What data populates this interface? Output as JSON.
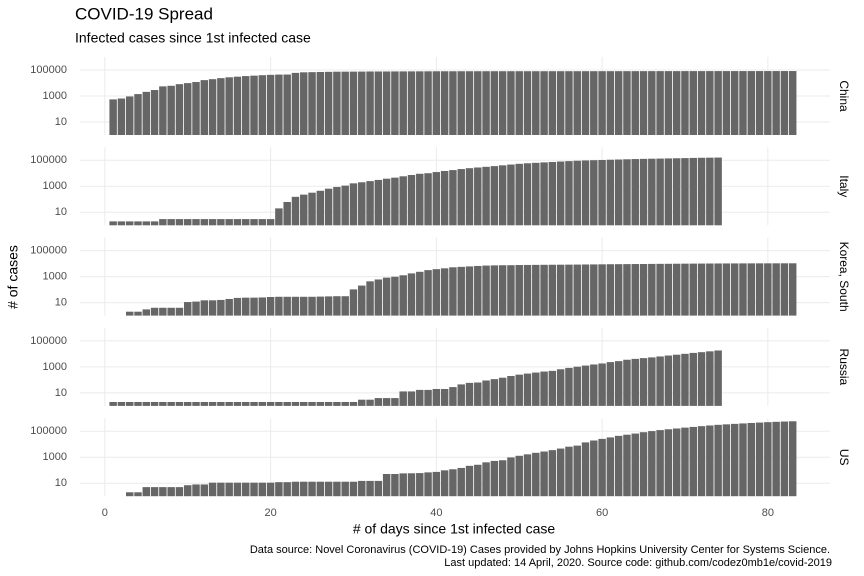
{
  "chart_data": {
    "type": "bar",
    "title": "COVID-19 Spread",
    "subtitle": "Infected cases since 1st infected case",
    "x_label": "# of days since 1st infected case",
    "y_label": "# of cases",
    "caption": [
      "Data source: Novel Coronavirus (COVID-19) Cases provided by Johns Hopkins University Center for Systems Science.",
      "Last updated: 14 April, 2020. Source code: github.com/codez0mb1e/covid-2019"
    ],
    "log_y": true,
    "grid": true,
    "xlim": [
      -3,
      87.5
    ],
    "xticks": [
      0,
      20,
      40,
      60,
      80
    ],
    "ylim": [
      1,
      1000000
    ],
    "yticks": [
      10,
      1000,
      100000
    ],
    "x": [
      1,
      2,
      3,
      4,
      5,
      6,
      7,
      8,
      9,
      10,
      11,
      12,
      13,
      14,
      15,
      16,
      17,
      18,
      19,
      20,
      21,
      22,
      23,
      24,
      25,
      26,
      27,
      28,
      29,
      30,
      31,
      32,
      33,
      34,
      35,
      36,
      37,
      38,
      39,
      40,
      41,
      42,
      43,
      44,
      45,
      46,
      47,
      48,
      49,
      50,
      51,
      52,
      53,
      54,
      55,
      56,
      57,
      58,
      59,
      60,
      61,
      62,
      63,
      64,
      65,
      66,
      67,
      68,
      69,
      70,
      71,
      72,
      73,
      74,
      75,
      76,
      77,
      78,
      79,
      80,
      81,
      82,
      83
    ],
    "series": [
      {
        "name": "China",
        "color": "#666666",
        "values": [
          548,
          643,
          920,
          1406,
          2075,
          2877,
          5509,
          6087,
          8141,
          9802,
          11891,
          16630,
          19716,
          23707,
          27440,
          30587,
          34110,
          36814,
          39829,
          42354,
          44386,
          44759,
          59895,
          66358,
          68413,
          70513,
          72434,
          74211,
          74619,
          75077,
          75550,
          77001,
          77022,
          77241,
          77754,
          78166,
          78600,
          78928,
          79356,
          79932,
          80136,
          80261,
          80386,
          80537,
          80690,
          80770,
          80823,
          80860,
          80887,
          80921,
          80932,
          80945,
          80977,
          81003,
          81033,
          81058,
          81102,
          81156,
          81250,
          81305,
          81435,
          81498,
          81591,
          81661,
          81782,
          81897,
          81999,
          82122,
          82198,
          82279,
          82361,
          82432,
          82511,
          82543,
          82602,
          82665,
          82718,
          82809,
          82883,
          82941,
          83014,
          83134,
          83213
        ]
      },
      {
        "name": "Italy",
        "color": "#666666",
        "values": [
          2,
          2,
          2,
          2,
          2,
          2,
          3,
          3,
          3,
          3,
          3,
          3,
          3,
          3,
          3,
          3,
          3,
          3,
          3,
          3,
          20,
          62,
          155,
          229,
          322,
          453,
          655,
          888,
          1128,
          1694,
          2036,
          2502,
          3089,
          3858,
          4636,
          5883,
          7375,
          9172,
          10149,
          12462,
          15113,
          17660,
          21157,
          24747,
          27980,
          31506,
          35713,
          41035,
          47021,
          53578,
          59138,
          63927,
          69176,
          74386,
          80589,
          86498,
          92472,
          97689,
          101739,
          105792,
          110574,
          115242,
          119827,
          124632,
          128948,
          132547,
          135586,
          139422,
          143626,
          147577,
          152271,
          156363,
          159516,
          162488,
          null,
          null,
          null,
          null,
          null,
          null,
          null,
          null,
          null
        ]
      },
      {
        "name": "Korea, South",
        "color": "#666666",
        "values": [
          1,
          1,
          2,
          2,
          3,
          4,
          4,
          4,
          4,
          11,
          12,
          15,
          15,
          16,
          19,
          23,
          24,
          24,
          25,
          27,
          28,
          28,
          28,
          28,
          28,
          29,
          30,
          31,
          31,
          104,
          204,
          433,
          602,
          833,
          977,
          1261,
          1766,
          2337,
          3150,
          3736,
          4335,
          5186,
          5621,
          6088,
          6593,
          7041,
          7314,
          7478,
          7513,
          7755,
          7869,
          7979,
          8086,
          8162,
          8236,
          8320,
          8413,
          8565,
          8652,
          8799,
          8961,
          9037,
          9137,
          9241,
          9332,
          9478,
          9583,
          9661,
          9786,
          9887,
          9976,
          10062,
          10156,
          10237,
          10284,
          10331,
          10384,
          10423,
          10450,
          10480,
          10512,
          10537,
          10564
        ]
      },
      {
        "name": "Russia",
        "color": "#666666",
        "values": [
          2,
          2,
          2,
          2,
          2,
          2,
          2,
          2,
          2,
          2,
          2,
          2,
          2,
          2,
          2,
          2,
          2,
          2,
          2,
          2,
          2,
          2,
          2,
          2,
          2,
          2,
          2,
          2,
          2,
          2,
          3,
          3,
          4,
          4,
          4,
          13,
          13,
          17,
          17,
          20,
          20,
          28,
          45,
          59,
          63,
          90,
          114,
          147,
          199,
          253,
          306,
          367,
          438,
          495,
          658,
          840,
          1036,
          1264,
          1534,
          1836,
          2337,
          2777,
          3548,
          4149,
          4731,
          5389,
          6343,
          7497,
          8672,
          10131,
          11917,
          13584,
          15770,
          18328,
          null,
          null,
          null,
          null,
          null,
          null,
          null,
          null,
          null
        ]
      },
      {
        "name": "US",
        "color": "#666666",
        "values": [
          1,
          1,
          2,
          2,
          5,
          5,
          5,
          5,
          5,
          7,
          8,
          8,
          11,
          11,
          11,
          11,
          11,
          11,
          11,
          11,
          12,
          12,
          13,
          13,
          13,
          13,
          13,
          13,
          13,
          13,
          15,
          15,
          15,
          51,
          51,
          57,
          58,
          60,
          68,
          74,
          98,
          118,
          149,
          217,
          262,
          402,
          518,
          583,
          959,
          1281,
          1663,
          2179,
          2727,
          3499,
          4632,
          6421,
          7783,
          13747,
          19273,
          25600,
          33276,
          43847,
          53740,
          65778,
          83836,
          101657,
          121478,
          140886,
          161807,
          188172,
          213372,
          243762,
          275586,
          308853,
          337072,
          366667,
          396223,
          429052,
          461437,
          496535,
          526396,
          555313,
          580619
        ]
      }
    ]
  }
}
